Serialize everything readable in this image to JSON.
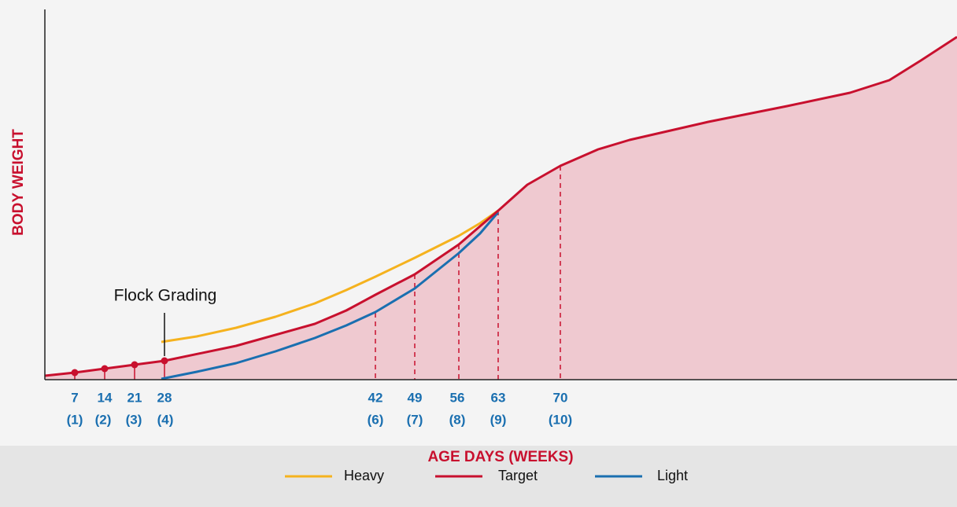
{
  "axis_labels": {
    "y": "BODY WEIGHT",
    "x": "AGE DAYS (WEEKS)"
  },
  "annotation": "Flock Grading",
  "ticks": [
    {
      "day": "7",
      "week": "(1)"
    },
    {
      "day": "14",
      "week": "(2)"
    },
    {
      "day": "21",
      "week": "(3)"
    },
    {
      "day": "28",
      "week": "(4)"
    },
    {
      "day": "42",
      "week": "(6)"
    },
    {
      "day": "49",
      "week": "(7)"
    },
    {
      "day": "56",
      "week": "(8)"
    },
    {
      "day": "63",
      "week": "(9)"
    },
    {
      "day": "70",
      "week": "(10)"
    }
  ],
  "legend": [
    "Heavy",
    "Target",
    "Light"
  ]
}
